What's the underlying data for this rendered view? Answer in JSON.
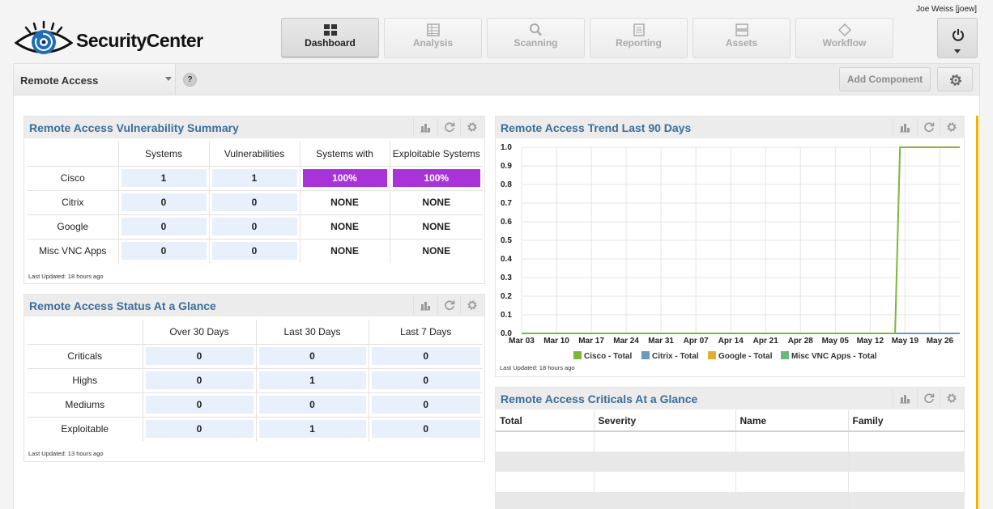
{
  "header": {
    "user": "Joe Weiss [joew]",
    "app_name": "SecurityCenter",
    "nav": [
      {
        "label": "Dashboard",
        "icon": "dashboard-icon",
        "active": true
      },
      {
        "label": "Analysis",
        "icon": "analysis-icon",
        "active": false
      },
      {
        "label": "Scanning",
        "icon": "scanning-icon",
        "active": false
      },
      {
        "label": "Reporting",
        "icon": "reporting-icon",
        "active": false
      },
      {
        "label": "Assets",
        "icon": "assets-icon",
        "active": false
      },
      {
        "label": "Workflow",
        "icon": "workflow-icon",
        "active": false
      }
    ]
  },
  "toolbar": {
    "dashboard_name": "Remote Access",
    "help_label": "?",
    "add_component_label": "Add Component"
  },
  "vuln_summary": {
    "title": "Remote Access Vulnerability Summary",
    "columns": [
      "Systems",
      "Vulnerabilities",
      "Systems with",
      "Exploitable Systems"
    ],
    "rows": [
      {
        "label": "Cisco",
        "values": [
          "1",
          "1",
          "100%",
          "100%"
        ]
      },
      {
        "label": "Citrix",
        "values": [
          "0",
          "0",
          "NONE",
          "NONE"
        ]
      },
      {
        "label": "Google",
        "values": [
          "0",
          "0",
          "NONE",
          "NONE"
        ]
      },
      {
        "label": "Misc VNC Apps",
        "values": [
          "0",
          "0",
          "NONE",
          "NONE"
        ]
      }
    ],
    "updated": "Last Updated: 18 hours ago"
  },
  "status_glance": {
    "title": "Remote Access Status At a Glance",
    "columns": [
      "Over 30 Days",
      "Last 30 Days",
      "Last 7 Days"
    ],
    "rows": [
      {
        "label": "Criticals",
        "values": [
          "0",
          "0",
          "0"
        ]
      },
      {
        "label": "Highs",
        "values": [
          "0",
          "1",
          "0"
        ]
      },
      {
        "label": "Mediums",
        "values": [
          "0",
          "0",
          "0"
        ]
      },
      {
        "label": "Exploitable",
        "values": [
          "0",
          "1",
          "0"
        ]
      }
    ],
    "updated": "Last Updated: 13 hours ago"
  },
  "trend": {
    "title": "Remote Access Trend Last 90 Days",
    "updated": "Last Updated: 18 hours ago"
  },
  "criticals": {
    "title": "Remote Access Criticals At a Glance",
    "columns": [
      "Total",
      "Severity",
      "Name",
      "Family"
    ]
  },
  "colors": {
    "accent_title": "#3a6d9a",
    "pct_fill": "#a733d9",
    "cell_fill": "#e8f0fb",
    "scroll_accent": "#f0b400"
  },
  "chart_data": {
    "type": "line",
    "title": "Remote Access Trend Last 90 Days",
    "x": [
      "Mar 03",
      "Mar 10",
      "Mar 17",
      "Mar 24",
      "Mar 31",
      "Apr 07",
      "Apr 14",
      "Apr 21",
      "Apr 28",
      "May 05",
      "May 12",
      "May 19",
      "May 26"
    ],
    "yticks": [
      "0.0",
      "0.1",
      "0.2",
      "0.3",
      "0.4",
      "0.5",
      "0.6",
      "0.7",
      "0.8",
      "0.9",
      "1.0"
    ],
    "ylim": [
      0,
      1
    ],
    "grid": true,
    "legend_position": "bottom",
    "series": [
      {
        "name": "Cisco - Total",
        "color": "#7db63c",
        "points": [
          [
            "Mar 03",
            0
          ],
          [
            "May 17",
            0
          ],
          [
            "May 18",
            1
          ],
          [
            "May 30",
            1
          ]
        ]
      },
      {
        "name": "Citrix - Total",
        "color": "#6a9ab8",
        "points": [
          [
            "Mar 03",
            0
          ],
          [
            "May 30",
            0
          ]
        ]
      },
      {
        "name": "Google - Total",
        "color": "#e0ae32",
        "points": [
          [
            "Mar 03",
            0
          ],
          [
            "May 30",
            0
          ]
        ]
      },
      {
        "name": "Misc VNC Apps - Total",
        "color": "#6db67f",
        "points": [
          [
            "Mar 03",
            0
          ],
          [
            "May 30",
            0
          ]
        ]
      }
    ]
  }
}
